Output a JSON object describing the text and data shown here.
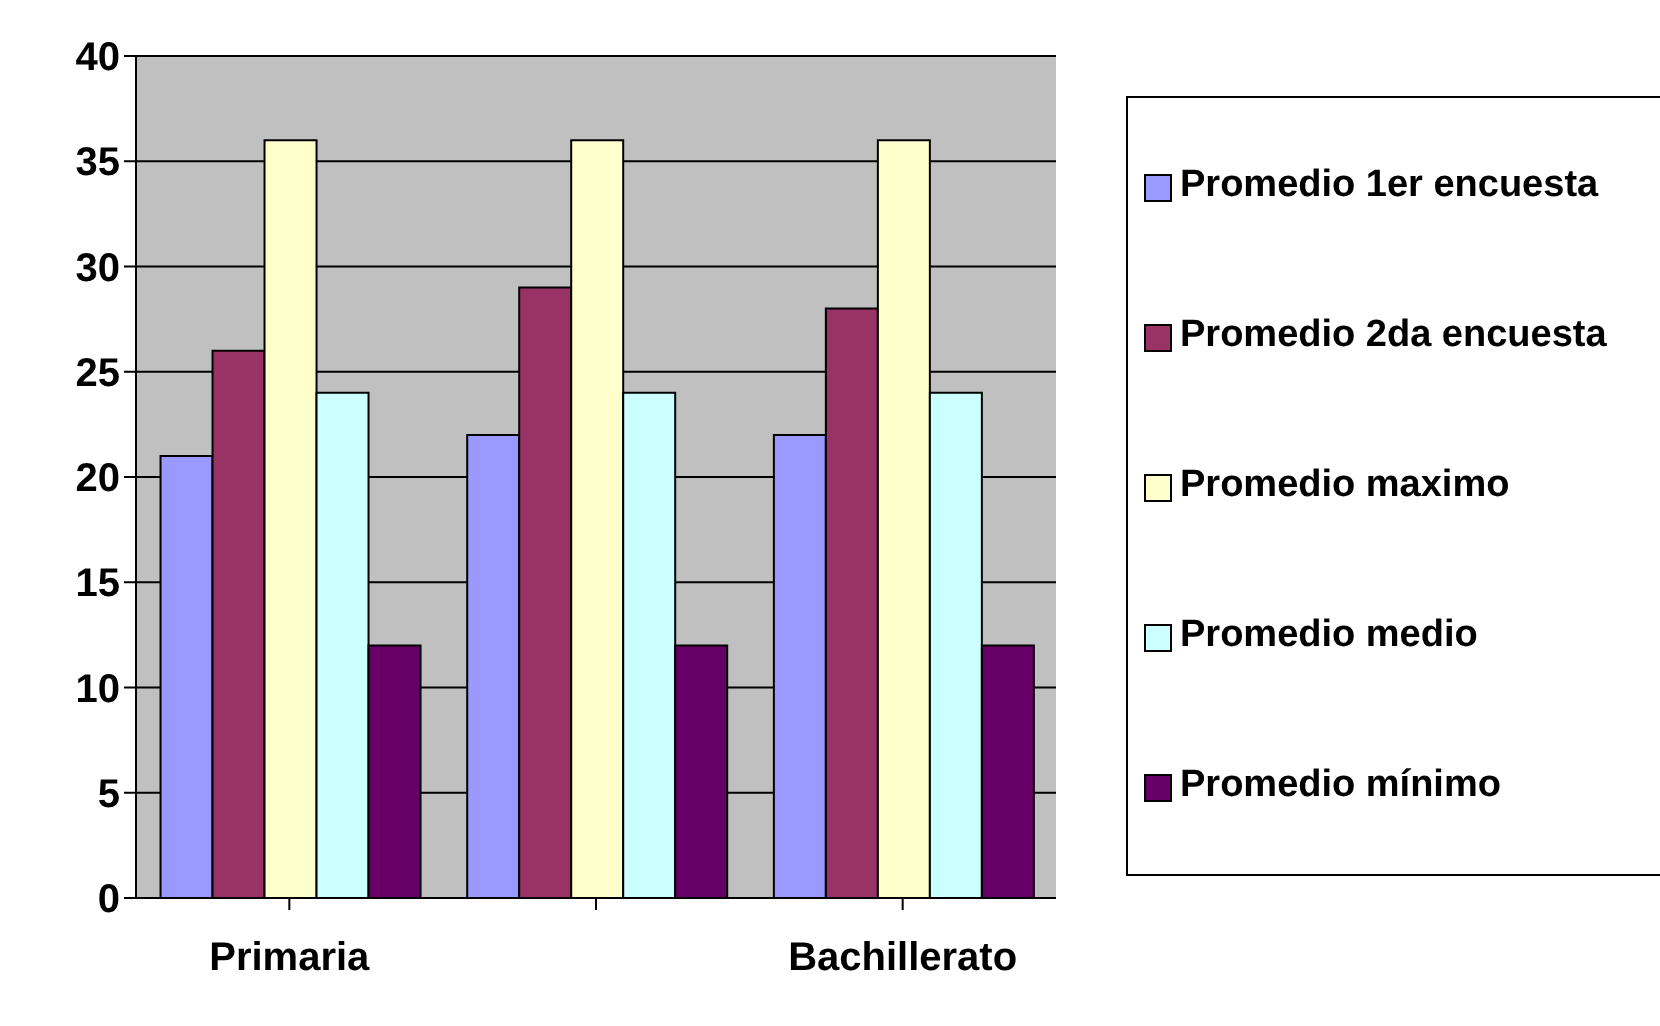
{
  "chart_data": {
    "type": "bar",
    "categories": [
      "Primaria",
      null,
      "Bachillerato"
    ],
    "series": [
      {
        "name": "Promedio 1er encuesta",
        "color": "#9999ff",
        "values": [
          21,
          22,
          22
        ]
      },
      {
        "name": "Promedio 2da encuesta",
        "color": "#993366",
        "values": [
          26,
          29,
          28
        ]
      },
      {
        "name": "Promedio maximo",
        "color": "#ffffcc",
        "values": [
          36,
          36,
          36
        ]
      },
      {
        "name": "Promedio medio",
        "color": "#ccffff",
        "values": [
          24,
          24,
          24
        ]
      },
      {
        "name": "Promedio mínimo",
        "color": "#660066",
        "values": [
          12,
          12,
          12
        ]
      }
    ],
    "ylim": [
      0,
      40
    ],
    "yticks": [
      0,
      5,
      10,
      15,
      20,
      25,
      30,
      35,
      40
    ],
    "grid": "y",
    "legend": "right"
  }
}
